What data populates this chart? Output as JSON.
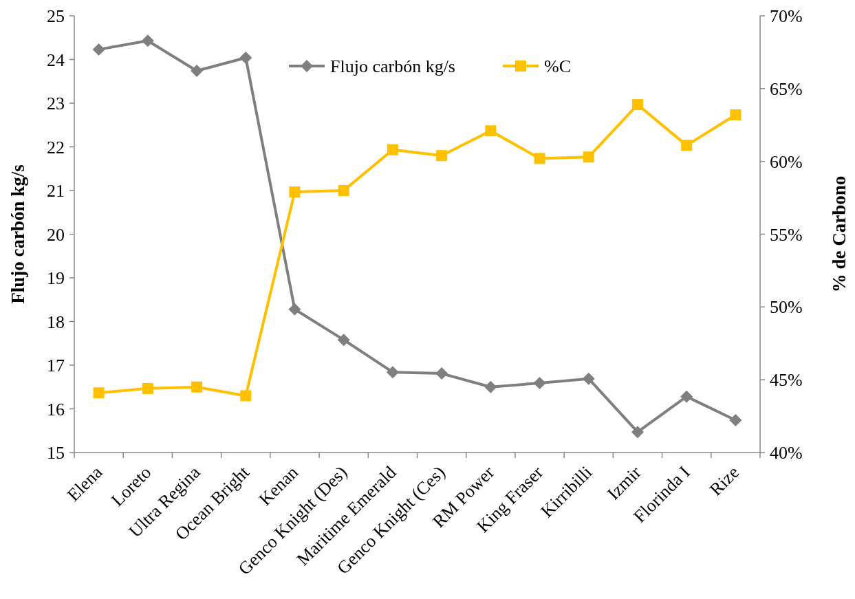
{
  "chart_data": {
    "type": "line",
    "xlabel": null,
    "ylabel": "Flujo carbón kg/s",
    "y2label": "% de Carbono",
    "categories": [
      "Elena",
      "Loreto",
      "Ultra Regina",
      "Ocean Bright",
      "Kenan",
      "Genco Knight (Des)",
      "Maritime Emerald",
      "Genco Knight (Ces)",
      "RM Power",
      "King Fraser",
      "Kirribilli",
      "Izmir",
      "Florinda I",
      "Rize"
    ],
    "series": [
      {
        "name": "Flujo carbón kg/s",
        "color": "#7f7f7f",
        "marker": "diamond",
        "values": [
          24.23,
          24.43,
          23.74,
          24.04,
          18.28,
          17.58,
          16.84,
          16.81,
          16.5,
          16.59,
          16.69,
          15.47,
          16.28,
          15.74
        ]
      },
      {
        "name": "%C",
        "color": "#ffc000",
        "marker": "square",
        "axis": "y2",
        "values": [
          44.1,
          44.4,
          44.5,
          43.9,
          57.9,
          58.0,
          60.8,
          60.4,
          62.1,
          60.2,
          60.3,
          63.9,
          61.1,
          63.2
        ]
      }
    ],
    "ylim": [
      15,
      25
    ],
    "yticks": [
      15,
      16,
      17,
      18,
      19,
      20,
      21,
      22,
      23,
      24,
      25
    ],
    "y2lim": [
      40,
      70
    ],
    "y2ticks": [
      {
        "value": 40,
        "label": "40%"
      },
      {
        "value": 45,
        "label": "45%"
      },
      {
        "value": 50,
        "label": "50%"
      },
      {
        "value": 55,
        "label": "55%"
      },
      {
        "value": 60,
        "label": "60%"
      },
      {
        "value": 65,
        "label": "65%"
      },
      {
        "value": 70,
        "label": "70%"
      }
    ],
    "legend": "top",
    "grid": false,
    "line_style": "solid"
  }
}
